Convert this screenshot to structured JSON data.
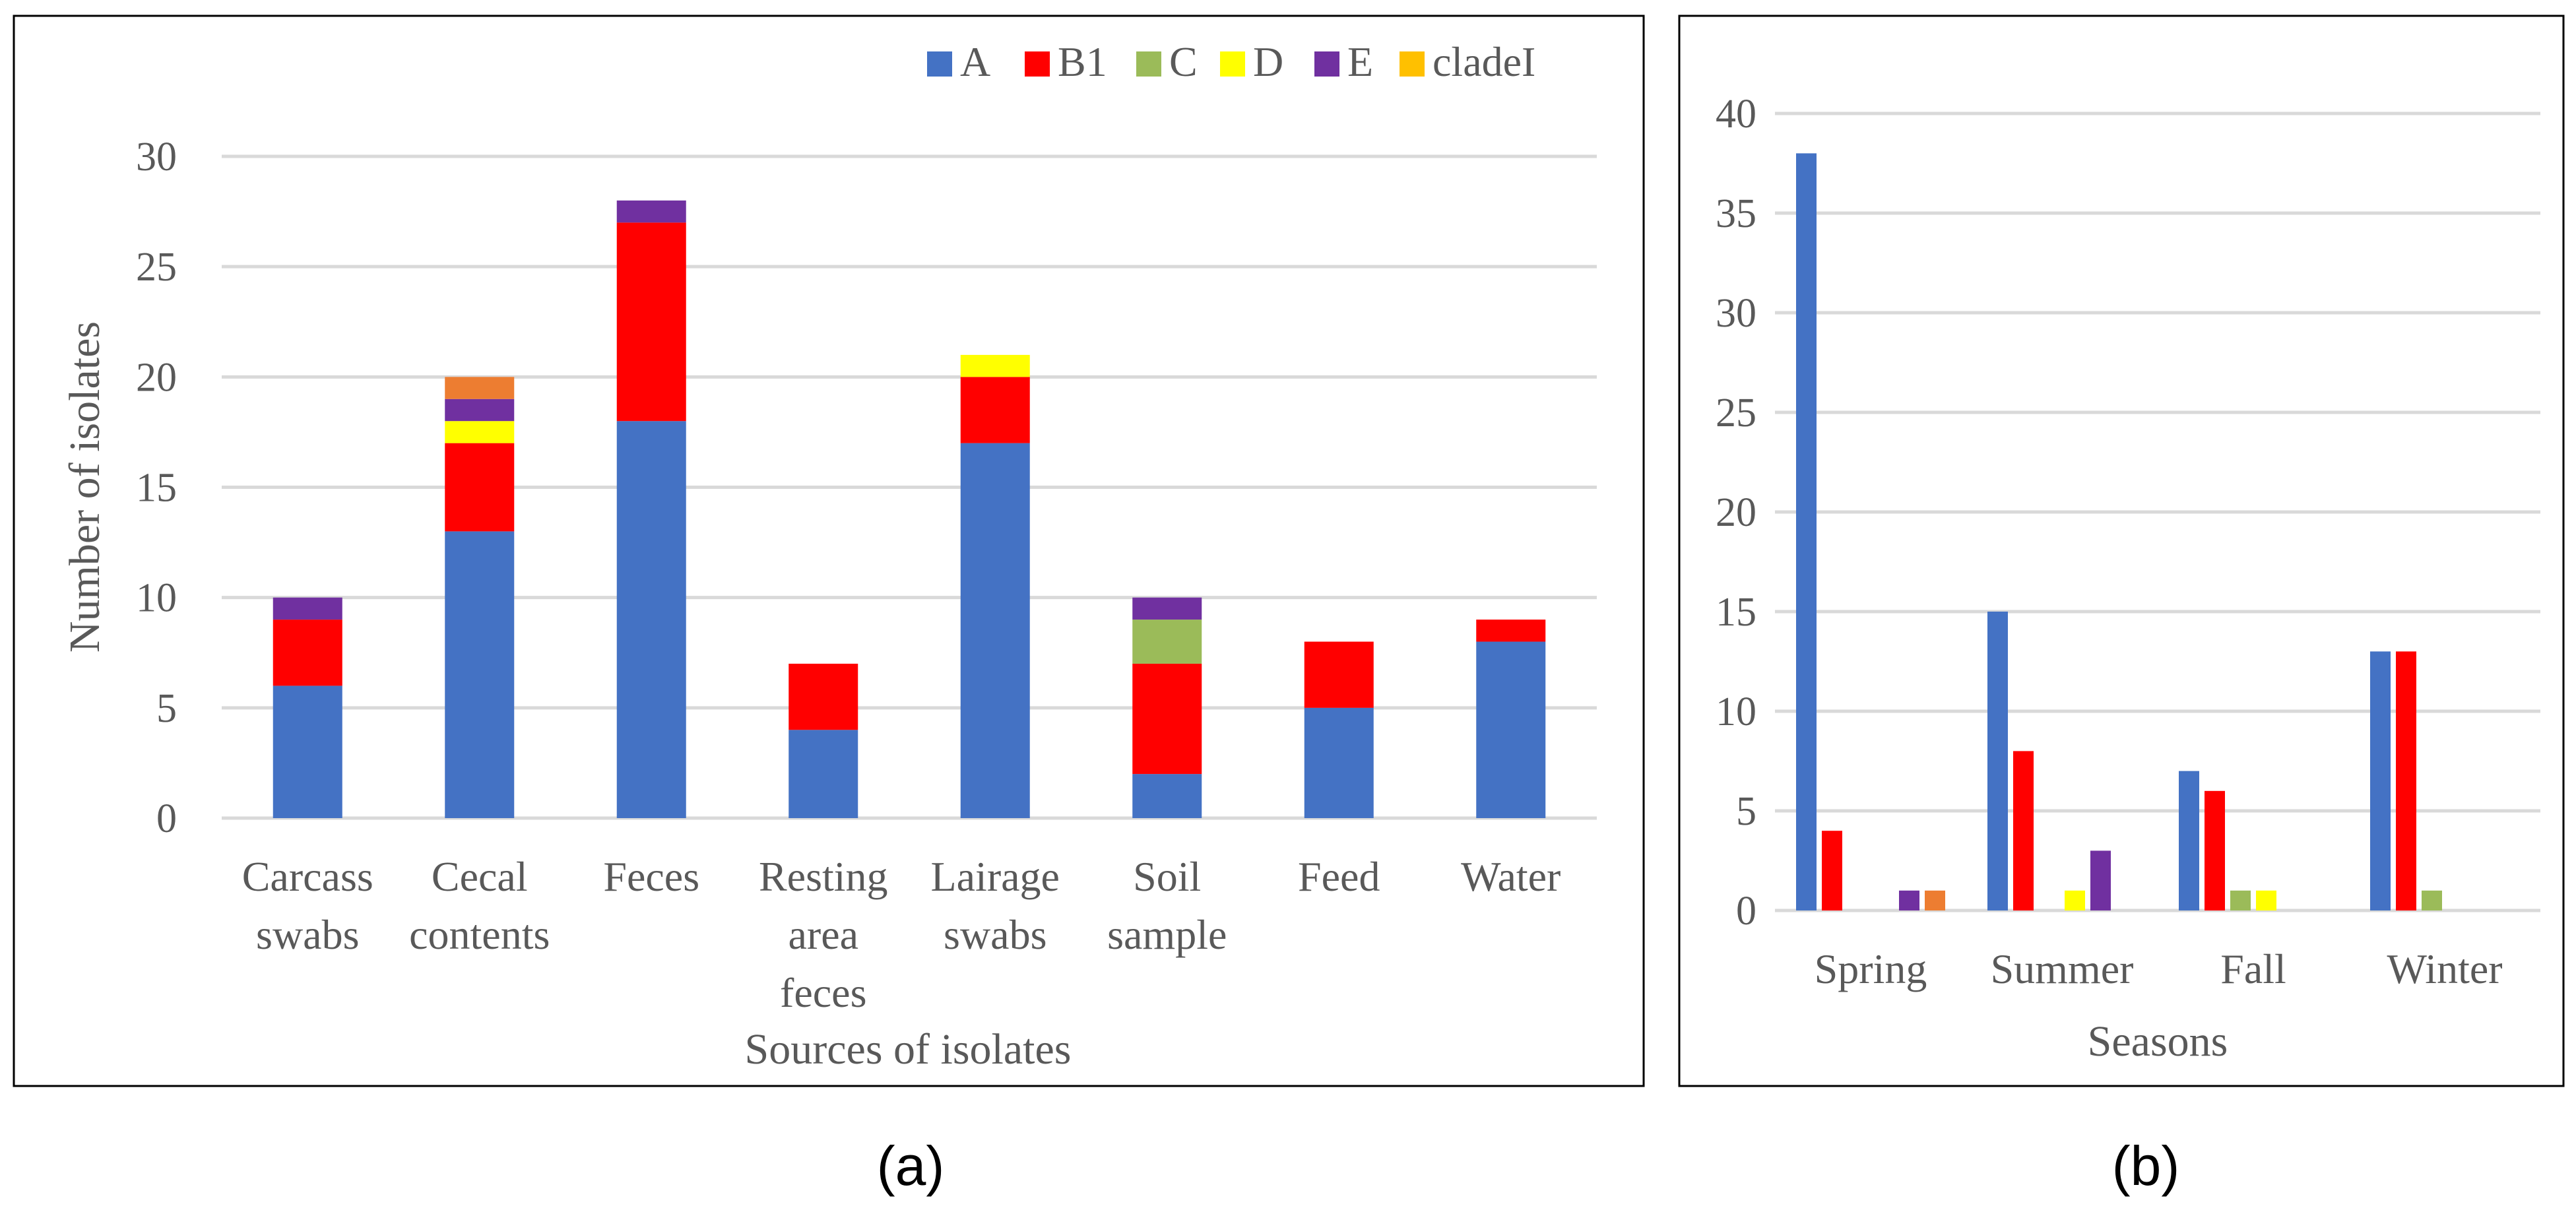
{
  "chart_data": [
    {
      "type": "bar",
      "stacked": true,
      "panel_label": "(a)",
      "title": "",
      "xlabel": "Sources of isolates",
      "ylabel": "Number of isolates",
      "ylim": [
        0,
        30
      ],
      "yticks": [
        0,
        5,
        10,
        15,
        20,
        25,
        30
      ],
      "grid": true,
      "legend_position": "top-right",
      "categories": [
        [
          "Carcass",
          "swabs"
        ],
        [
          "Cecal",
          "contents"
        ],
        [
          "Feces"
        ],
        [
          "Resting",
          "area",
          "feces"
        ],
        [
          "Lairage",
          "swabs"
        ],
        [
          "Soil",
          "sample"
        ],
        [
          "Feed"
        ],
        [
          "Water"
        ]
      ],
      "series": [
        {
          "name": "A",
          "color": "#4472C4",
          "values": [
            6,
            13,
            18,
            4,
            17,
            2,
            5,
            8
          ]
        },
        {
          "name": "B1",
          "color": "#FF0000",
          "values": [
            3,
            4,
            9,
            3,
            3,
            5,
            3,
            1
          ]
        },
        {
          "name": "C",
          "color": "#9BBB59",
          "values": [
            0,
            0,
            0,
            0,
            0,
            2,
            0,
            0
          ]
        },
        {
          "name": "D",
          "color": "#FFFF00",
          "values": [
            0,
            1,
            0,
            0,
            1,
            0,
            0,
            0
          ]
        },
        {
          "name": "E",
          "color": "#7030A0",
          "values": [
            1,
            1,
            1,
            0,
            0,
            1,
            0,
            0
          ]
        },
        {
          "name": "cladeI",
          "color": "#ED7D31",
          "legend_color": "#FFC000",
          "values": [
            0,
            1,
            0,
            0,
            0,
            0,
            0,
            0
          ]
        }
      ]
    },
    {
      "type": "bar",
      "stacked": false,
      "panel_label": "(b)",
      "title": "",
      "xlabel": "Seasons",
      "ylabel": "",
      "ylim": [
        0,
        40
      ],
      "yticks": [
        0,
        5,
        10,
        15,
        20,
        25,
        30,
        35,
        40
      ],
      "grid": true,
      "categories": [
        "Spring",
        "Summer",
        "Fall",
        "Winter"
      ],
      "series": [
        {
          "name": "A",
          "color": "#4472C4",
          "values": [
            38,
            15,
            7,
            13
          ]
        },
        {
          "name": "B1",
          "color": "#FF0000",
          "values": [
            4,
            8,
            6,
            13
          ]
        },
        {
          "name": "C",
          "color": "#9BBB59",
          "values": [
            0,
            0,
            1,
            1
          ]
        },
        {
          "name": "D",
          "color": "#FFFF00",
          "values": [
            0,
            1,
            1,
            0
          ]
        },
        {
          "name": "E",
          "color": "#7030A0",
          "values": [
            1,
            3,
            0,
            0
          ]
        },
        {
          "name": "cladeI",
          "color": "#ED7D31",
          "values": [
            1,
            0,
            0,
            0
          ]
        }
      ]
    }
  ]
}
